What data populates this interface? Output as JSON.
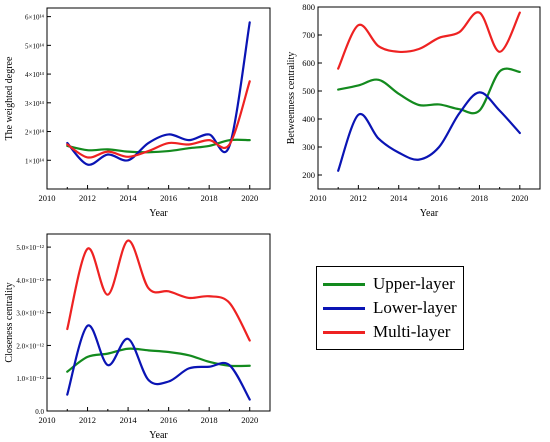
{
  "legend": {
    "upper": "Upper-layer",
    "lower": "Lower-layer",
    "multi": "Multi-layer"
  },
  "colors": {
    "upper": "#138a1e",
    "lower": "#0a14b4",
    "multi": "#ee2222"
  },
  "chart_data": [
    {
      "type": "line",
      "xlabel": "Year",
      "ylabel": "The weighted degree",
      "xlim": [
        2010,
        2021
      ],
      "ylim": [
        0,
        630000000000000.0
      ],
      "xticks": [
        2010,
        2012,
        2014,
        2016,
        2018,
        2020
      ],
      "xtick_labels": [
        "2010",
        "2012",
        "2014",
        "2016",
        "2018",
        "2020"
      ],
      "yticks": [
        100000000000000.0,
        200000000000000.0,
        300000000000000.0,
        400000000000000.0,
        500000000000000.0,
        600000000000000.0
      ],
      "ytick_labels": [
        "1×10¹⁴",
        "2×10¹⁴",
        "3×10¹⁴",
        "4×10¹⁴",
        "5×10¹⁴",
        "6×10¹⁴"
      ],
      "x": [
        2011,
        2012,
        2013,
        2014,
        2015,
        2016,
        2017,
        2018,
        2019,
        2020
      ],
      "series": [
        {
          "name": "Upper-layer",
          "key": "upper",
          "values": [
            150000000000000.0,
            135000000000000.0,
            138000000000000.0,
            130000000000000.0,
            128000000000000.0,
            132000000000000.0,
            142000000000000.0,
            150000000000000.0,
            170000000000000.0,
            170000000000000.0
          ]
        },
        {
          "name": "Lower-layer",
          "key": "lower",
          "values": [
            160000000000000.0,
            85000000000000.0,
            120000000000000.0,
            100000000000000.0,
            160000000000000.0,
            190000000000000.0,
            170000000000000.0,
            190000000000000.0,
            150000000000000.0,
            580000000000000.0
          ]
        },
        {
          "name": "Multi-layer",
          "key": "multi",
          "values": [
            155000000000000.0,
            110000000000000.0,
            130000000000000.0,
            112000000000000.0,
            132000000000000.0,
            160000000000000.0,
            155000000000000.0,
            170000000000000.0,
            155000000000000.0,
            375000000000000.0
          ]
        }
      ]
    },
    {
      "type": "line",
      "xlabel": "Year",
      "ylabel": "Betweenness centrality",
      "xlim": [
        2010,
        2021
      ],
      "ylim": [
        150,
        800
      ],
      "xticks": [
        2010,
        2012,
        2014,
        2016,
        2018,
        2020
      ],
      "xtick_labels": [
        "2010",
        "2012",
        "2014",
        "2016",
        "2018",
        "2020"
      ],
      "yticks": [
        200,
        300,
        400,
        500,
        600,
        700,
        800
      ],
      "ytick_labels": [
        "200",
        "300",
        "400",
        "500",
        "600",
        "700",
        "800"
      ],
      "x": [
        2011,
        2012,
        2013,
        2014,
        2015,
        2016,
        2017,
        2018,
        2019,
        2020
      ],
      "series": [
        {
          "name": "Upper-layer",
          "key": "upper",
          "values": [
            505,
            520,
            540,
            490,
            450,
            452,
            435,
            430,
            570,
            568
          ]
        },
        {
          "name": "Lower-layer",
          "key": "lower",
          "values": [
            215,
            415,
            330,
            280,
            255,
            300,
            420,
            495,
            430,
            350
          ]
        },
        {
          "name": "Multi-layer",
          "key": "multi",
          "values": [
            580,
            735,
            660,
            640,
            650,
            690,
            710,
            780,
            640,
            780
          ]
        }
      ]
    },
    {
      "type": "line",
      "xlabel": "Year",
      "ylabel": "Closeness centrality",
      "xlim": [
        2010,
        2021
      ],
      "ylim": [
        0,
        5.4e-12
      ],
      "xticks": [
        2010,
        2012,
        2014,
        2016,
        2018,
        2020
      ],
      "xtick_labels": [
        "2010",
        "2012",
        "2014",
        "2016",
        "2018",
        "2020"
      ],
      "yticks": [
        0,
        1e-12,
        2e-12,
        3e-12,
        4e-12,
        5e-12
      ],
      "ytick_labels": [
        "0.0",
        "1.0×10⁻¹²",
        "2.0×10⁻¹²",
        "3.0×10⁻¹²",
        "4.0×10⁻¹²",
        "5.0×10⁻¹²"
      ],
      "x": [
        2011,
        2012,
        2013,
        2014,
        2015,
        2016,
        2017,
        2018,
        2019,
        2020
      ],
      "series": [
        {
          "name": "Upper-layer",
          "key": "upper",
          "values": [
            1.2e-12,
            1.65e-12,
            1.75e-12,
            1.9e-12,
            1.85e-12,
            1.8e-12,
            1.7e-12,
            1.5e-12,
            1.38e-12,
            1.38e-12
          ]
        },
        {
          "name": "Lower-layer",
          "key": "lower",
          "values": [
            5e-13,
            2.6e-12,
            1.4e-12,
            2.2e-12,
            9.5e-13,
            9e-13,
            1.3e-12,
            1.35e-12,
            1.4e-12,
            3.5e-13
          ]
        },
        {
          "name": "Multi-layer",
          "key": "multi",
          "values": [
            2.5e-12,
            4.95e-12,
            3.55e-12,
            5.2e-12,
            3.75e-12,
            3.65e-12,
            3.45e-12,
            3.5e-12,
            3.3e-12,
            2.15e-12
          ]
        }
      ]
    }
  ]
}
